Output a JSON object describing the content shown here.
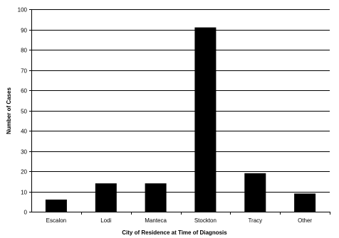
{
  "chart_data": {
    "type": "bar",
    "title": "",
    "xlabel": "City of Residence at Time of Diagnosis",
    "ylabel": "Number of Cases",
    "categories": [
      "Escalon",
      "Lodi",
      "Manteca",
      "Stockton",
      "Tracy",
      "Other"
    ],
    "values": [
      6,
      14,
      14,
      91,
      19,
      9
    ],
    "ylim": [
      0,
      100
    ],
    "yticks": [
      0,
      10,
      20,
      30,
      40,
      50,
      60,
      70,
      80,
      90,
      100
    ],
    "grid": true,
    "legend": "none",
    "colors": {
      "bar": "#000000",
      "grid": "#000000",
      "axis": "#000000",
      "background": "#ffffff"
    }
  }
}
